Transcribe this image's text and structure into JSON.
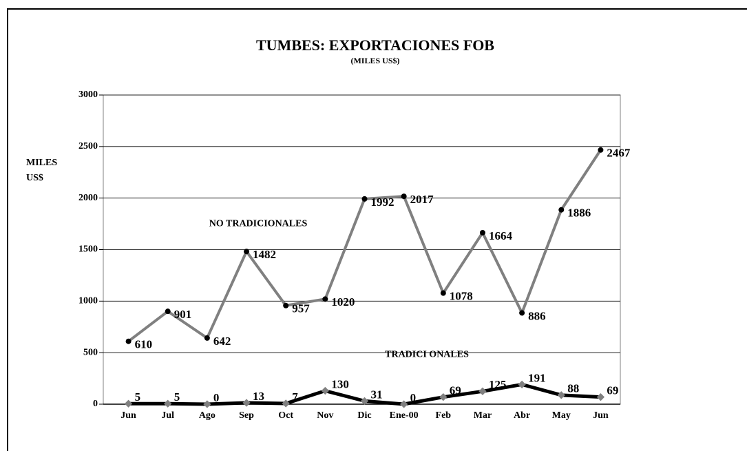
{
  "chart_data": {
    "type": "line",
    "title": "TUMBES:  EXPORTACIONES FOB",
    "subtitle": "(MILES US$)",
    "y_label": "MILES US$",
    "categories": [
      "Jun",
      "Jul",
      "Ago",
      "Sep",
      "Oct",
      "Nov",
      "Dic",
      "Ene-00",
      "Feb",
      "Mar",
      "Abr",
      "May",
      "Jun"
    ],
    "series": [
      {
        "name": "NO TRADICIONALES",
        "color": "#808080",
        "marker_color": "#000000",
        "values": [
          610,
          901,
          642,
          1482,
          957,
          1020,
          1992,
          2017,
          1078,
          1664,
          886,
          1886,
          2467
        ]
      },
      {
        "name": "TRADICI ONALES",
        "color": "#000000",
        "marker_color": "#808080",
        "values": [
          5,
          5,
          0,
          13,
          7,
          130,
          31,
          0,
          69,
          125,
          191,
          88,
          69
        ]
      }
    ],
    "ylim": [
      0,
      3000
    ],
    "yticks": [
      0,
      500,
      1000,
      1500,
      2000,
      2500,
      3000
    ],
    "grid": true
  }
}
